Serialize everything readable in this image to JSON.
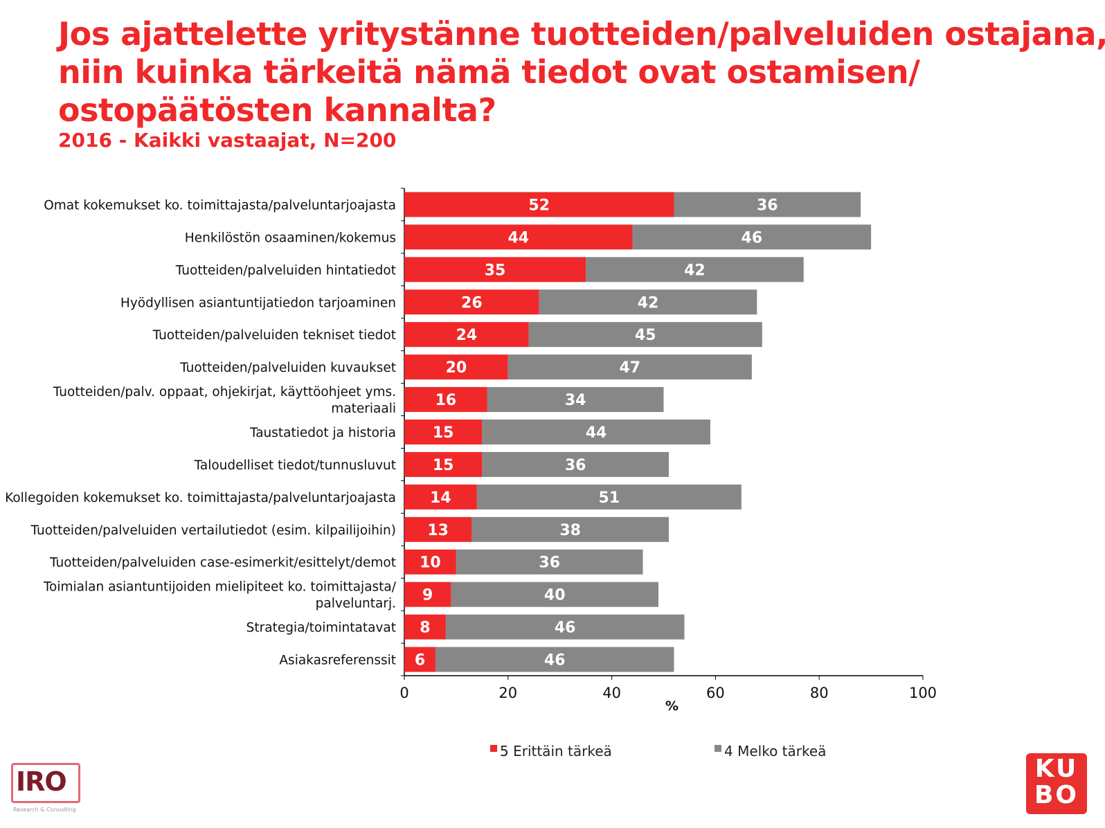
{
  "title_lines": [
    "Jos ajattelette yritystänne tuotteiden/palveluiden ostajana,",
    "niin kuinka tärkeitä nämä tiedot ovat ostamisen/",
    "ostopäätösten kannalta?"
  ],
  "subtitle": "2016 - Kaikki vastaajat, N=200",
  "logos": {
    "left": "IRO",
    "left_sub": "Research & Consulting",
    "right": "KUBO"
  },
  "chart_data": {
    "type": "bar",
    "orientation": "horizontal",
    "stacked": true,
    "categories": [
      [
        "Omat kokemukset ko. toimittajasta/palveluntarjoajasta"
      ],
      [
        "Henkilöstön osaaminen/kokemus"
      ],
      [
        "Tuotteiden/palveluiden hintatiedot"
      ],
      [
        "Hyödyllisen asiantuntijatiedon tarjoaminen"
      ],
      [
        "Tuotteiden/palveluiden tekniset tiedot"
      ],
      [
        "Tuotteiden/palveluiden kuvaukset"
      ],
      [
        "Tuotteiden/palv. oppaat, ohjekirjat, käyttöohjeet yms.",
        "materiaali"
      ],
      [
        "Taustatiedot ja historia"
      ],
      [
        "Taloudelliset tiedot/tunnusluvut"
      ],
      [
        "Kollegoiden kokemukset ko. toimittajasta/palveluntarjoajasta"
      ],
      [
        "Tuotteiden/palveluiden vertailutiedot (esim. kilpailijoihin)"
      ],
      [
        "Tuotteiden/palveluiden case-esimerkit/esittelyt/demot"
      ],
      [
        "Toimialan asiantuntijoiden mielipiteet ko. toimittajasta/",
        "palveluntarj."
      ],
      [
        "Strategia/toimintatavat"
      ],
      [
        "Asiakasreferenssit"
      ]
    ],
    "series": [
      {
        "name": "5 Erittäin tärkeä",
        "color": "#f0282a",
        "values": [
          52,
          44,
          35,
          26,
          24,
          20,
          16,
          15,
          15,
          14,
          13,
          10,
          9,
          8,
          6
        ]
      },
      {
        "name": "4 Melko tärkeä",
        "color": "#878787",
        "values": [
          36,
          46,
          42,
          42,
          45,
          47,
          34,
          44,
          36,
          51,
          38,
          36,
          40,
          46,
          46
        ]
      }
    ],
    "xlabel": "%",
    "xlim": [
      0,
      100
    ],
    "xticks": [
      0,
      20,
      40,
      60,
      80,
      100
    ],
    "grid": false,
    "data_labels": true,
    "legend_position": "bottom"
  }
}
